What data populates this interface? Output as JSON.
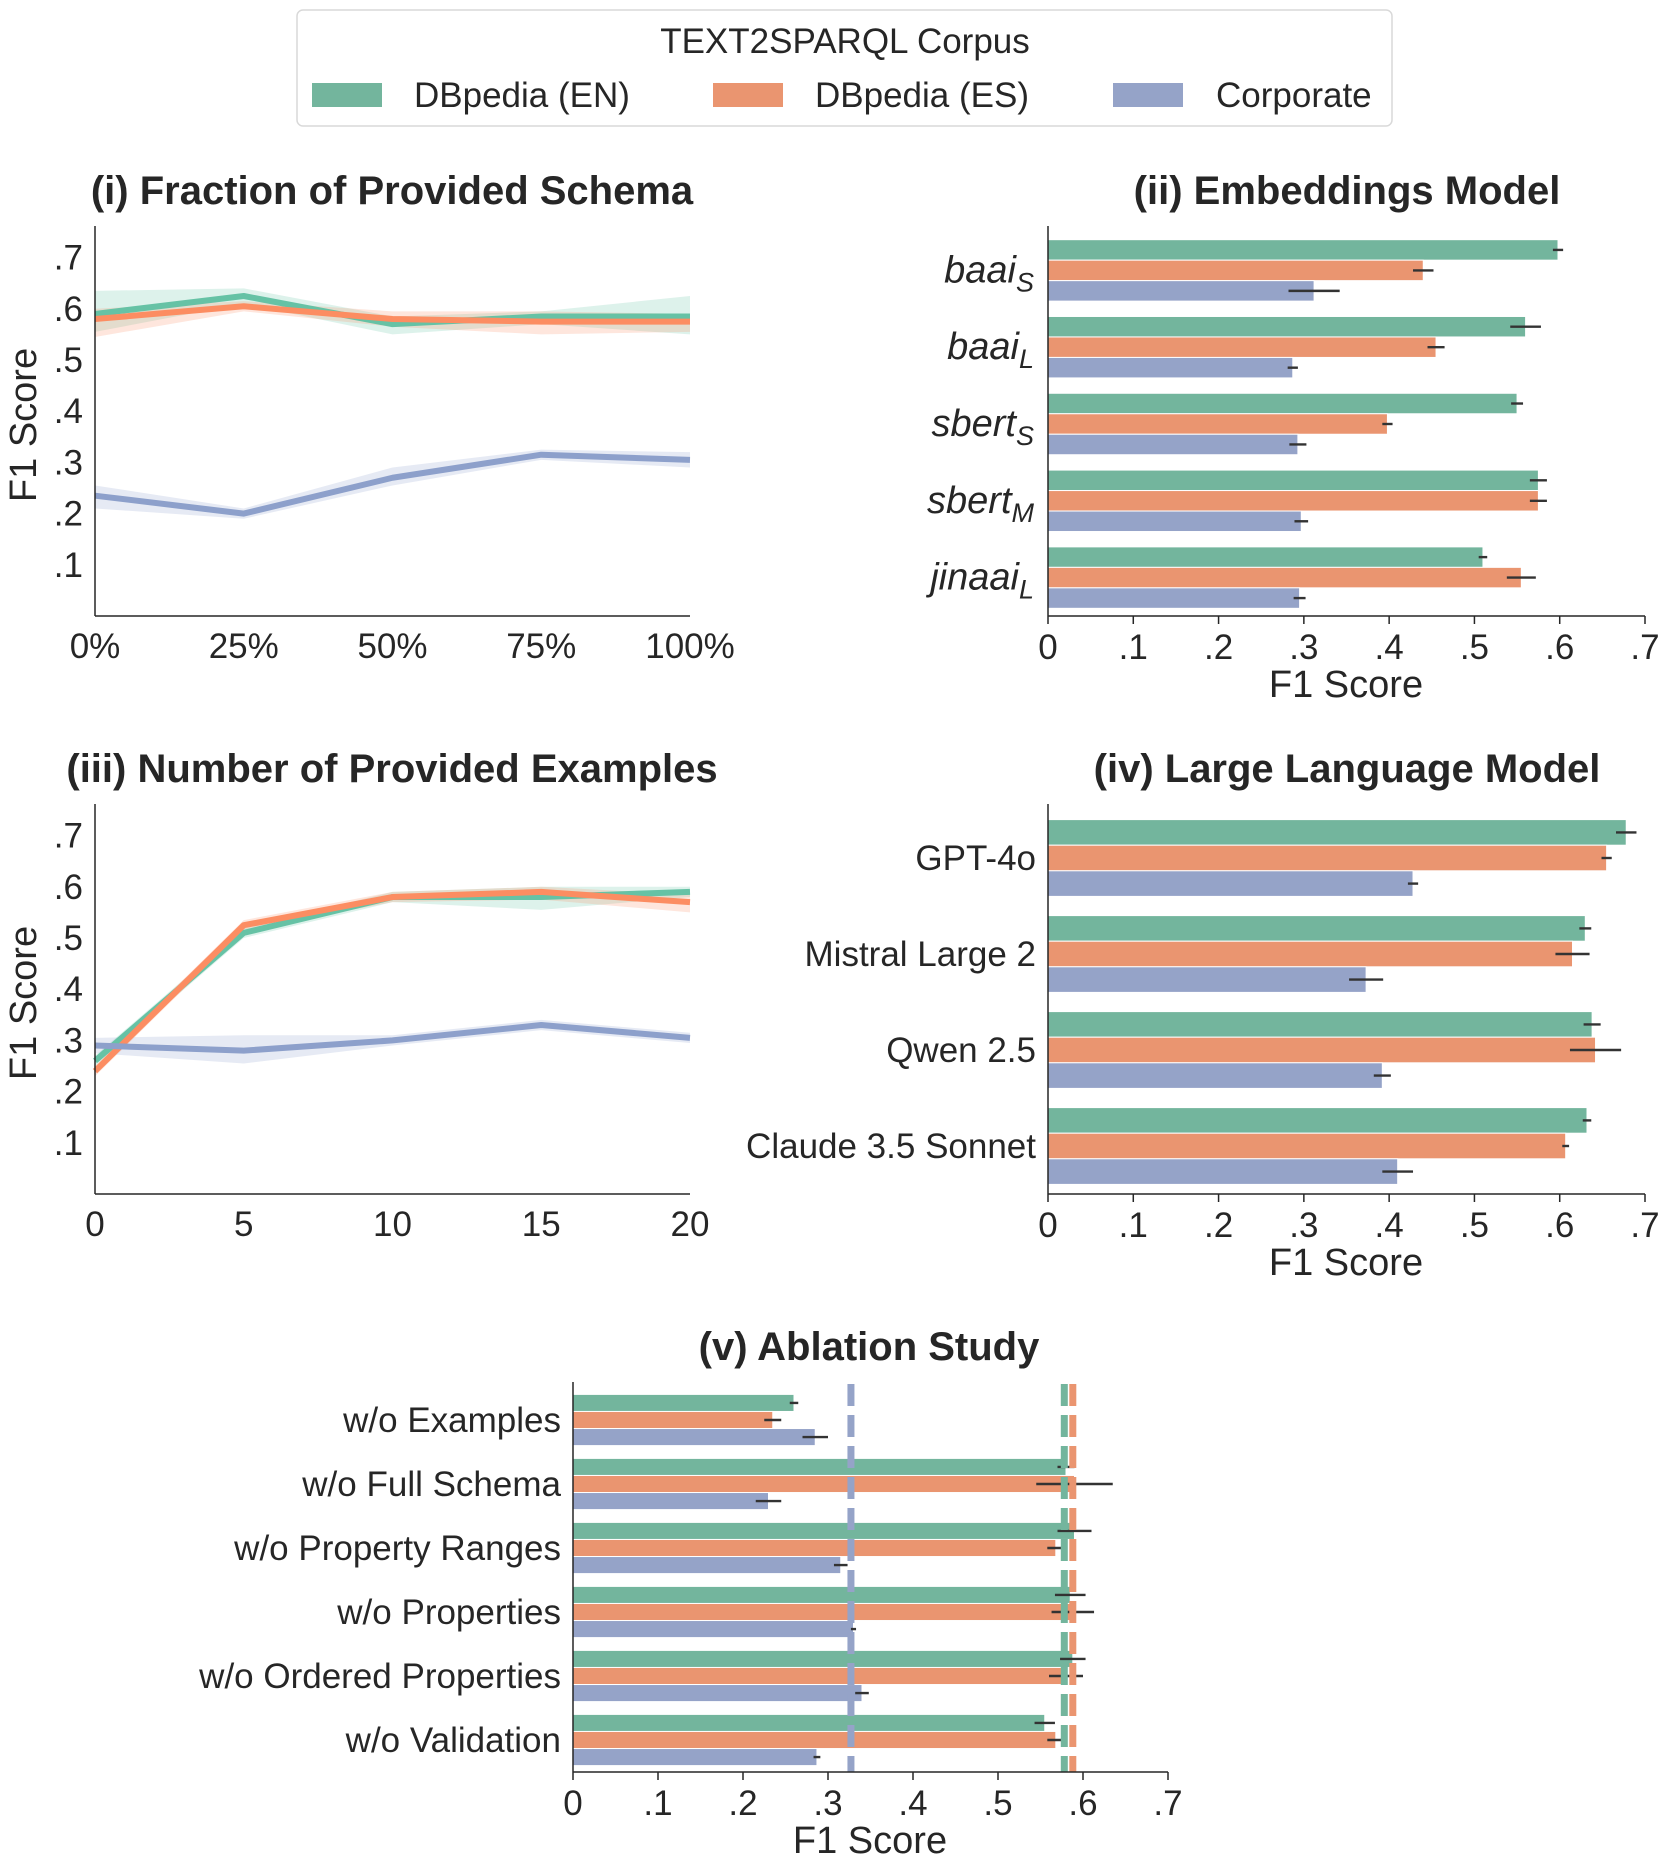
{
  "legend": {
    "title": "TEXT2SPARQL Corpus",
    "items": [
      {
        "label": "DBpedia (EN)",
        "color": "#73b59d"
      },
      {
        "label": "DBpedia (ES)",
        "color": "#ea9570"
      },
      {
        "label": "Corporate",
        "color": "#95a3c8"
      }
    ]
  },
  "line_colors": [
    "#66c2a5",
    "#fc8d62",
    "#8da0cb"
  ],
  "chart_data": [
    {
      "id": "p1",
      "type": "line",
      "title": "(i) Fraction of Provided Schema",
      "xlabel": "",
      "ylabel": "F1 Score",
      "x": [
        0,
        25,
        50,
        75,
        100
      ],
      "xticks": [
        "0%",
        "25%",
        "50%",
        "75%",
        "100%"
      ],
      "yticks": [
        ".1",
        ".2",
        ".3",
        ".4",
        ".5",
        ".6",
        ".7"
      ],
      "ylim": [
        0,
        0.75
      ],
      "series": [
        {
          "name": "DBpedia (EN)",
          "values": [
            0.59,
            0.625,
            0.57,
            0.585,
            0.585
          ],
          "lower": [
            0.555,
            0.61,
            0.55,
            0.57,
            0.55
          ],
          "upper": [
            0.635,
            0.64,
            0.585,
            0.595,
            0.625
          ]
        },
        {
          "name": "DBpedia (ES)",
          "values": [
            0.58,
            0.605,
            0.58,
            0.575,
            0.575
          ],
          "lower": [
            0.545,
            0.595,
            0.565,
            0.55,
            0.555
          ],
          "upper": [
            0.6,
            0.615,
            0.595,
            0.595,
            0.59
          ]
        },
        {
          "name": "Corporate",
          "values": [
            0.235,
            0.2,
            0.27,
            0.315,
            0.305
          ],
          "lower": [
            0.21,
            0.19,
            0.255,
            0.305,
            0.29
          ],
          "upper": [
            0.255,
            0.21,
            0.29,
            0.325,
            0.32
          ]
        }
      ]
    },
    {
      "id": "p2",
      "type": "bar",
      "orientation": "horizontal",
      "title": "(ii) Embeddings Model",
      "xlabel": "F1 Score",
      "categories": [
        {
          "base": "baai",
          "sub": "S"
        },
        {
          "base": "baai",
          "sub": "L"
        },
        {
          "base": "sbert",
          "sub": "S"
        },
        {
          "base": "sbert",
          "sub": "M"
        },
        {
          "base": "jinaai",
          "sub": "L"
        }
      ],
      "xticks": [
        "0",
        ".1",
        ".2",
        ".3",
        ".4",
        ".5",
        ".6",
        ".7"
      ],
      "xlim": [
        0,
        0.7
      ],
      "series": [
        {
          "name": "DBpedia (EN)",
          "values": [
            0.598,
            0.56,
            0.55,
            0.575,
            0.51
          ],
          "err": [
            0.006,
            0.018,
            0.007,
            0.01,
            0.005
          ]
        },
        {
          "name": "DBpedia (ES)",
          "values": [
            0.44,
            0.455,
            0.398,
            0.575,
            0.555
          ],
          "err": [
            0.012,
            0.01,
            0.006,
            0.01,
            0.017
          ]
        },
        {
          "name": "Corporate",
          "values": [
            0.312,
            0.287,
            0.293,
            0.297,
            0.295
          ],
          "err": [
            0.03,
            0.006,
            0.01,
            0.008,
            0.007
          ]
        }
      ]
    },
    {
      "id": "p3",
      "type": "line",
      "title": "(iii) Number of Provided Examples",
      "xlabel": "",
      "ylabel": "F1 Score",
      "x": [
        0,
        5,
        10,
        15,
        20
      ],
      "xticks": [
        "0",
        "5",
        "10",
        "15",
        "20"
      ],
      "yticks": [
        ".1",
        ".2",
        ".3",
        ".4",
        ".5",
        ".6",
        ".7"
      ],
      "ylim": [
        0,
        0.75
      ],
      "series": [
        {
          "name": "DBpedia (EN)",
          "values": [
            0.26,
            0.51,
            0.58,
            0.58,
            0.59
          ],
          "lower": [
            0.25,
            0.5,
            0.57,
            0.555,
            0.58
          ],
          "upper": [
            0.27,
            0.52,
            0.59,
            0.6,
            0.6
          ]
        },
        {
          "name": "DBpedia (ES)",
          "values": [
            0.24,
            0.525,
            0.58,
            0.59,
            0.57
          ],
          "lower": [
            0.23,
            0.515,
            0.57,
            0.575,
            0.55
          ],
          "upper": [
            0.25,
            0.535,
            0.59,
            0.6,
            0.585
          ]
        },
        {
          "name": "Corporate",
          "values": [
            0.29,
            0.28,
            0.3,
            0.33,
            0.305
          ],
          "lower": [
            0.275,
            0.255,
            0.29,
            0.32,
            0.295
          ],
          "upper": [
            0.305,
            0.31,
            0.31,
            0.34,
            0.315
          ]
        }
      ]
    },
    {
      "id": "p4",
      "type": "bar",
      "orientation": "horizontal",
      "title": "(iv) Large Language Model",
      "xlabel": "F1 Score",
      "categories": [
        "GPT-4o",
        "Mistral Large 2",
        "Qwen 2.5",
        "Claude 3.5 Sonnet"
      ],
      "xticks": [
        "0",
        ".1",
        ".2",
        ".3",
        ".4",
        ".5",
        ".6",
        ".7"
      ],
      "xlim": [
        0,
        0.7
      ],
      "series": [
        {
          "name": "DBpedia (EN)",
          "values": [
            0.678,
            0.63,
            0.638,
            0.632
          ],
          "err": [
            0.012,
            0.007,
            0.01,
            0.005
          ]
        },
        {
          "name": "DBpedia (ES)",
          "values": [
            0.655,
            0.615,
            0.642,
            0.607
          ],
          "err": [
            0.006,
            0.02,
            0.03,
            0.004
          ]
        },
        {
          "name": "Corporate",
          "values": [
            0.428,
            0.373,
            0.392,
            0.41
          ],
          "err": [
            0.006,
            0.02,
            0.01,
            0.018
          ]
        }
      ]
    },
    {
      "id": "p5",
      "type": "bar",
      "orientation": "horizontal",
      "title": "(v) Ablation Study",
      "xlabel": "F1 Score",
      "categories": [
        "w/o Examples",
        "w/o Full Schema",
        "w/o Property Ranges",
        "w/o Properties",
        "w/o Ordered Properties",
        "w/o Validation"
      ],
      "xticks": [
        "0",
        ".1",
        ".2",
        ".3",
        ".4",
        ".5",
        ".6",
        ".7"
      ],
      "xlim": [
        0,
        0.7
      ],
      "series": [
        {
          "name": "DBpedia (EN)",
          "values": [
            0.26,
            0.58,
            0.59,
            0.585,
            0.588,
            0.555
          ],
          "err": [
            0.005,
            0.01,
            0.02,
            0.018,
            0.015,
            0.012
          ]
        },
        {
          "name": "DBpedia (ES)",
          "values": [
            0.235,
            0.59,
            0.568,
            0.588,
            0.58,
            0.568
          ],
          "err": [
            0.01,
            0.045,
            0.01,
            0.025,
            0.02,
            0.01
          ]
        },
        {
          "name": "Corporate",
          "values": [
            0.285,
            0.23,
            0.315,
            0.33,
            0.34,
            0.287
          ],
          "err": [
            0.015,
            0.015,
            0.008,
            0.003,
            0.008,
            0.004
          ]
        }
      ],
      "reference_lines": [
        {
          "name": "Corporate",
          "value": 0.327
        },
        {
          "name": "DBpedia (EN)",
          "value": 0.578
        },
        {
          "name": "DBpedia (ES)",
          "value": 0.588
        }
      ]
    }
  ]
}
